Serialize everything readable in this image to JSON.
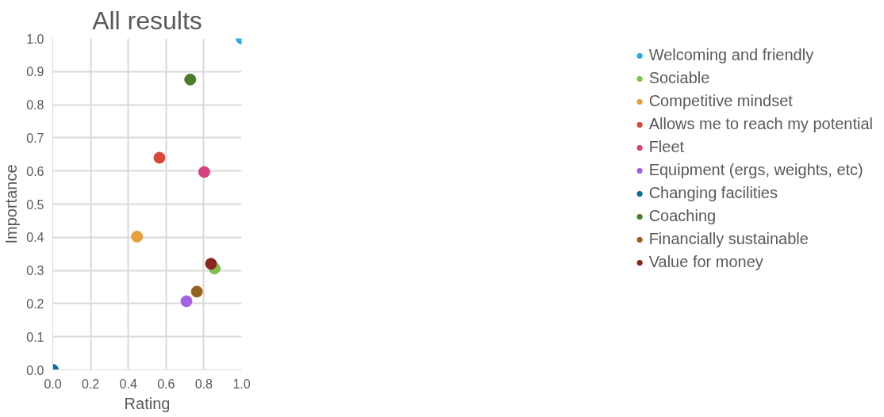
{
  "chart_data": {
    "type": "scatter",
    "title": "All results",
    "xlabel": "Rating",
    "ylabel": "Importance",
    "xlim": [
      0,
      1
    ],
    "ylim": [
      0,
      1
    ],
    "xticks": [
      {
        "value": 0,
        "label": "0.0"
      },
      0.2,
      0.4,
      0.6,
      0.8,
      {
        "value": 1,
        "label": "1.0"
      }
    ],
    "yticks": [
      {
        "value": 0,
        "label": "0.0"
      },
      0.1,
      0.2,
      0.3,
      0.4,
      0.5,
      0.6,
      0.7,
      0.8,
      0.9,
      {
        "value": 1,
        "label": "1.0"
      }
    ],
    "grid": true,
    "legend": "right",
    "marker": "circle",
    "series": [
      {
        "name": "Welcoming and friendly",
        "color": "#2eaae8",
        "x": [
          1.0
        ],
        "values": [
          1.0
        ]
      },
      {
        "name": "Sociable",
        "color": "#7ec14a",
        "x": [
          0.857
        ],
        "values": [
          0.306
        ]
      },
      {
        "name": "Competitive mindset",
        "color": "#e8a03c",
        "x": [
          0.446
        ],
        "values": [
          0.402
        ]
      },
      {
        "name": "Allows me to reach my potential",
        "color": "#d9483b",
        "x": [
          0.565
        ],
        "values": [
          0.64
        ]
      },
      {
        "name": "Fleet",
        "color": "#d6417f",
        "x": [
          0.802
        ],
        "values": [
          0.597
        ]
      },
      {
        "name": "Equipment (ergs, weights, etc)",
        "color": "#a461e0",
        "x": [
          0.708
        ],
        "values": [
          0.207
        ]
      },
      {
        "name": "Changing facilities",
        "color": "#0e6b9c",
        "x": [
          0.0
        ],
        "values": [
          0.0
        ]
      },
      {
        "name": "Coaching",
        "color": "#4a7c2a",
        "x": [
          0.728
        ],
        "values": [
          0.876
        ]
      },
      {
        "name": "Financially sustainable",
        "color": "#94611a",
        "x": [
          0.763
        ],
        "values": [
          0.236
        ]
      },
      {
        "name": "Value for money",
        "color": "#8b2520",
        "x": [
          0.838
        ],
        "values": [
          0.32
        ]
      }
    ]
  }
}
